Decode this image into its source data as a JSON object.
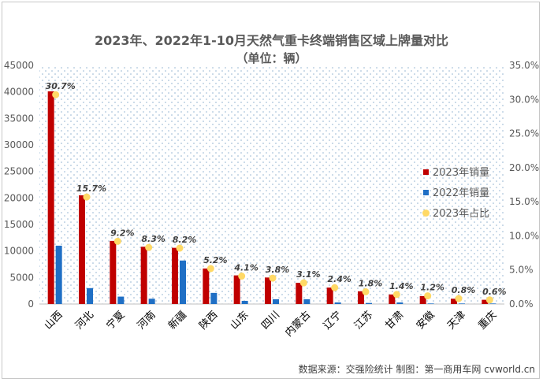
{
  "chart_data": {
    "type": "bar",
    "title": "2023年、2022年1-10月天然气重卡终端销售区域上牌量对比",
    "subtitle": "（单位：辆）",
    "categories": [
      "山西",
      "河北",
      "宁夏",
      "河南",
      "新疆",
      "陕西",
      "山东",
      "四川",
      "内蒙古",
      "辽宁",
      "江苏",
      "甘肃",
      "安徽",
      "天津",
      "重庆"
    ],
    "series": [
      {
        "name": "2023年销量",
        "axis": "left",
        "color": "#c00000",
        "values": [
          40100,
          20500,
          11900,
          10800,
          10600,
          6700,
          5400,
          5000,
          4000,
          3100,
          2400,
          1800,
          1500,
          1000,
          800
        ]
      },
      {
        "name": "2022年销量",
        "axis": "left",
        "color": "#1f6fc5",
        "values": [
          11000,
          3000,
          1400,
          1000,
          8200,
          2100,
          600,
          900,
          900,
          300,
          200,
          300,
          100,
          100,
          100
        ]
      },
      {
        "name": "2023年占比",
        "axis": "right",
        "color": "#ffd966",
        "values": [
          30.7,
          15.7,
          9.2,
          8.3,
          8.2,
          5.2,
          4.1,
          3.8,
          3.1,
          2.4,
          1.8,
          1.4,
          1.2,
          0.8,
          0.6
        ],
        "labels": [
          "30.7%",
          "15.7%",
          "9.2%",
          "8.3%",
          "8.2%",
          "5.2%",
          "4.1%",
          "3.8%",
          "3.1%",
          "2.4%",
          "1.8%",
          "1.4%",
          "1.2%",
          "0.8%",
          "0.6%"
        ]
      }
    ],
    "ylim": [
      0,
      45000
    ],
    "yticks": [
      "0",
      "5000",
      "10000",
      "15000",
      "20000",
      "25000",
      "30000",
      "35000",
      "40000",
      "45000"
    ],
    "y2lim": [
      0,
      35
    ],
    "y2ticks": [
      "0.0%",
      "5.0%",
      "10.0%",
      "15.0%",
      "20.0%",
      "25.0%",
      "30.0%",
      "35.0%"
    ],
    "legend_placement": "right",
    "grid": "dotted background"
  },
  "source_note": "数据来源：交强险统计  制图：第一商用车网 cvworld.cn"
}
